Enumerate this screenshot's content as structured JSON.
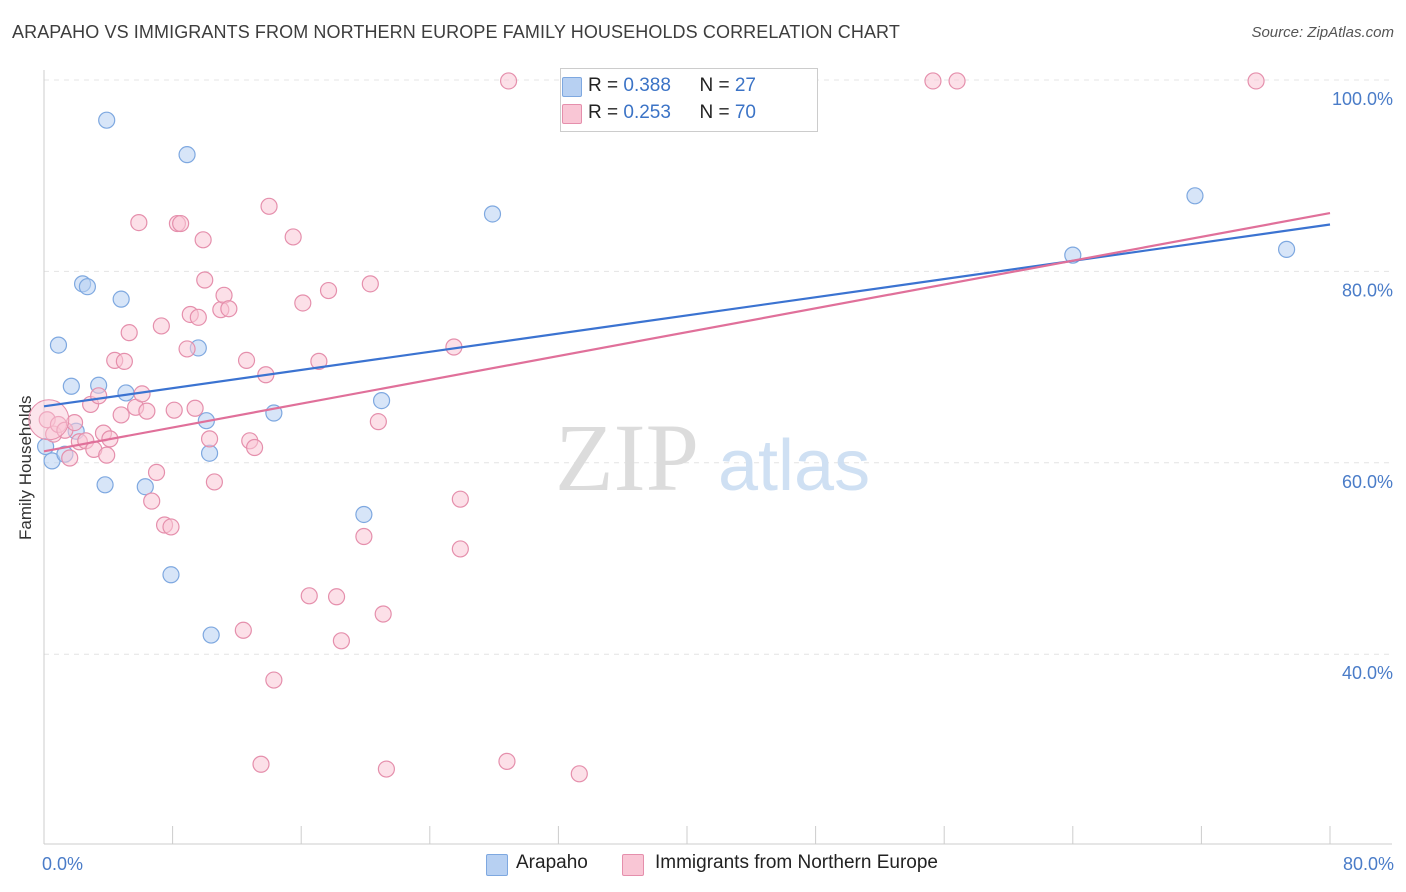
{
  "title": "ARAPAHO VS IMMIGRANTS FROM NORTHERN EUROPE FAMILY HOUSEHOLDS CORRELATION CHART",
  "source": "Source: ZipAtlas.com",
  "watermark": {
    "zip": "ZIP",
    "atlas": "atlas"
  },
  "legend": {
    "rows": [
      {
        "r_label": "R = ",
        "r_value": "0.388",
        "n_label": "N = ",
        "n_value": "27",
        "color": "#7ea8e0",
        "fill": "#b7d0f2"
      },
      {
        "r_label": "R = ",
        "r_value": "0.253",
        "n_label": "N = ",
        "n_value": "70",
        "color": "#e58fac",
        "fill": "#f9c6d5"
      }
    ]
  },
  "bottom_legend": [
    {
      "label": "Arapaho",
      "color": "#7ea8e0",
      "fill": "#b7d0f2"
    },
    {
      "label": "Immigrants from Northern Europe",
      "color": "#e58fac",
      "fill": "#f9c6d5"
    }
  ],
  "chart_data": {
    "type": "scatter",
    "title": "ARAPAHO VS IMMIGRANTS FROM NORTHERN EUROPE FAMILY HOUSEHOLDS CORRELATION CHART",
    "xlabel": "",
    "ylabel": "Family Households",
    "xlim": [
      0,
      80
    ],
    "ylim": [
      20,
      102
    ],
    "x_tick_labels": [
      {
        "value": 0,
        "label": "0.0%"
      },
      {
        "value": 80,
        "label": "80.0%"
      }
    ],
    "y_tick_labels": [
      {
        "value": 100,
        "label": "100.0%"
      },
      {
        "value": 80,
        "label": "80.0%"
      },
      {
        "value": 60,
        "label": "60.0%"
      },
      {
        "value": 40,
        "label": "40.0%"
      }
    ],
    "grid": true,
    "legend_position": "top-center",
    "series": [
      {
        "name": "Arapaho",
        "color": "#3b73d1",
        "marker_stroke": "#7ea8e0",
        "marker_fill": "#b7d0f2",
        "trend": {
          "x": [
            0,
            80
          ],
          "y": [
            65.9,
            84.9
          ]
        },
        "points": [
          [
            0.1,
            61.7
          ],
          [
            0.5,
            60.2
          ],
          [
            0.9,
            72.3
          ],
          [
            1.3,
            60.9
          ],
          [
            1.7,
            68.0
          ],
          [
            2.0,
            63.3
          ],
          [
            2.4,
            78.7
          ],
          [
            2.7,
            78.4
          ],
          [
            3.4,
            68.1
          ],
          [
            3.8,
            57.7
          ],
          [
            4.8,
            77.1
          ],
          [
            5.1,
            67.3
          ],
          [
            3.9,
            95.8
          ],
          [
            6.3,
            57.5
          ],
          [
            7.9,
            48.3
          ],
          [
            8.9,
            92.2
          ],
          [
            9.6,
            72.0
          ],
          [
            10.1,
            64.4
          ],
          [
            10.3,
            61.0
          ],
          [
            10.4,
            42.0
          ],
          [
            14.3,
            65.2
          ],
          [
            19.9,
            54.6
          ],
          [
            21.0,
            66.5
          ],
          [
            27.9,
            86.0
          ],
          [
            64.0,
            81.7
          ],
          [
            71.6,
            87.9
          ],
          [
            77.3,
            82.3
          ]
        ]
      },
      {
        "name": "Immigrants from Northern Europe",
        "color": "#e0709a",
        "marker_stroke": "#e58fac",
        "marker_fill": "#f9c6d5",
        "trend": {
          "x": [
            0,
            80
          ],
          "y": [
            61.2,
            86.1
          ]
        },
        "points": [
          [
            0.2,
            64.5
          ],
          [
            0.6,
            63.0
          ],
          [
            0.9,
            64.0
          ],
          [
            1.3,
            63.4
          ],
          [
            1.6,
            60.5
          ],
          [
            1.9,
            64.2
          ],
          [
            2.2,
            62.2
          ],
          [
            2.6,
            62.3
          ],
          [
            2.9,
            66.1
          ],
          [
            3.1,
            61.4
          ],
          [
            3.4,
            67.0
          ],
          [
            3.7,
            63.1
          ],
          [
            3.9,
            60.8
          ],
          [
            4.1,
            62.5
          ],
          [
            4.4,
            70.7
          ],
          [
            4.8,
            65.0
          ],
          [
            5.0,
            70.6
          ],
          [
            5.3,
            73.6
          ],
          [
            5.7,
            65.8
          ],
          [
            6.1,
            67.2
          ],
          [
            6.4,
            65.4
          ],
          [
            6.7,
            56.0
          ],
          [
            7.0,
            59.0
          ],
          [
            7.3,
            74.3
          ],
          [
            7.5,
            53.5
          ],
          [
            7.9,
            53.3
          ],
          [
            8.1,
            65.5
          ],
          [
            8.3,
            85.0
          ],
          [
            8.9,
            71.9
          ],
          [
            9.1,
            75.5
          ],
          [
            9.4,
            65.7
          ],
          [
            9.6,
            75.2
          ],
          [
            9.9,
            83.3
          ],
          [
            10.0,
            79.1
          ],
          [
            10.3,
            62.5
          ],
          [
            10.6,
            58.0
          ],
          [
            11.0,
            76.0
          ],
          [
            11.2,
            77.5
          ],
          [
            11.5,
            76.1
          ],
          [
            12.4,
            42.5
          ],
          [
            12.6,
            70.7
          ],
          [
            12.8,
            62.3
          ],
          [
            13.1,
            61.6
          ],
          [
            13.5,
            28.5
          ],
          [
            13.8,
            69.2
          ],
          [
            14.0,
            86.8
          ],
          [
            14.3,
            37.3
          ],
          [
            15.5,
            83.6
          ],
          [
            16.1,
            76.7
          ],
          [
            16.5,
            46.1
          ],
          [
            17.1,
            70.6
          ],
          [
            17.7,
            78.0
          ],
          [
            18.2,
            46.0
          ],
          [
            18.5,
            41.4
          ],
          [
            19.9,
            52.3
          ],
          [
            20.3,
            78.7
          ],
          [
            20.8,
            64.3
          ],
          [
            21.1,
            44.2
          ],
          [
            21.3,
            28.0
          ],
          [
            25.5,
            72.1
          ],
          [
            25.9,
            56.2
          ],
          [
            25.9,
            51.0
          ],
          [
            28.8,
            28.8
          ],
          [
            28.9,
            99.9
          ],
          [
            33.3,
            27.5
          ],
          [
            55.3,
            99.9
          ],
          [
            56.8,
            99.9
          ],
          [
            75.4,
            99.9
          ],
          [
            5.9,
            85.1
          ],
          [
            8.5,
            85.0
          ]
        ]
      }
    ]
  }
}
